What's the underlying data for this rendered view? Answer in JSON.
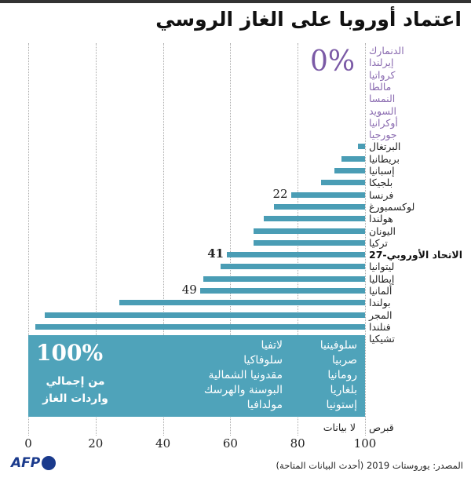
{
  "chart_data": {
    "type": "bar",
    "title": "اعتماد أوروبا على الغاز الروسي",
    "xlim": [
      0,
      100
    ],
    "xticks": [
      "0",
      "20",
      "40",
      "60",
      "80",
      "100"
    ],
    "zero_label": "0%",
    "zero_countries": [
      "الدنمارك",
      "إيرلندا",
      "كرواتيا",
      "مالطا",
      "النمسا",
      "السويد",
      "أوكرانيا",
      "جورجيا"
    ],
    "categories": [
      "البرتغال",
      "بريطانيا",
      "إسبانيا",
      "بلجيكا",
      "فرنسا",
      "لوكسمبورغ",
      "هولندا",
      "اليونان",
      "تركيا",
      "الاتحاد الأوروبي-27",
      "ليتوانيا",
      "إيطاليا",
      "ألمانيا",
      "بولندا",
      "المجر",
      "فنلندا",
      "تشيكيا"
    ],
    "values": [
      2,
      7,
      9,
      13,
      22,
      27,
      30,
      33,
      33,
      41,
      43,
      48,
      49,
      73,
      95,
      98,
      99
    ],
    "data_labels": {
      "4": "22",
      "9": "41",
      "12": "49"
    },
    "highlight_index": 9,
    "full_label": "100%",
    "full_caption": "من إجمالي واردات الغاز",
    "full_countries_col1": [
      "سلوفينيا",
      "صربيا",
      "رومانيا",
      "بلغاريا",
      "إستونيا"
    ],
    "full_countries_col2": [
      "لاتفيا",
      "سلوفاكيا",
      "مقدونيا الشمالية",
      "البوسنة والهرسك",
      "مولدافيا"
    ],
    "no_data_country": "قبرص",
    "no_data_label": "لا بيانات",
    "bar_color": "#4a9db5",
    "zero_color": "#8a6bb0"
  },
  "footer": {
    "logo": "AFP",
    "source": "المصدر: يوروستات 2019 (أحدث البيانات المتاحة)"
  }
}
